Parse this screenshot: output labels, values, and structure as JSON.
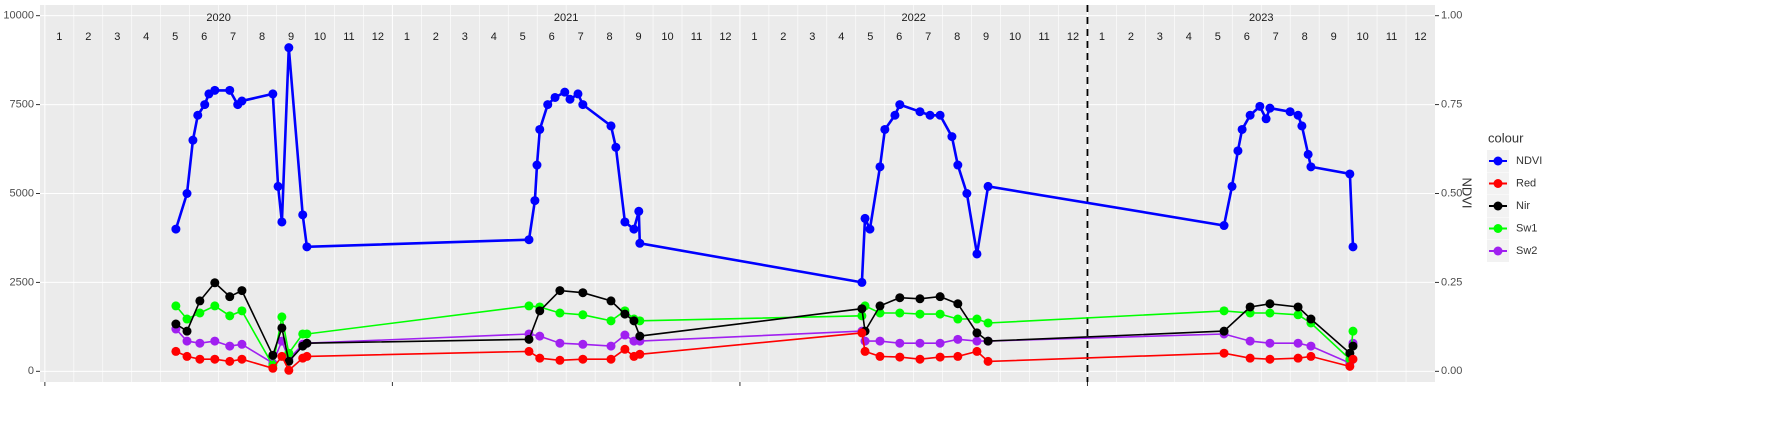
{
  "chart_data": {
    "type": "line",
    "years": [
      "2020",
      "2021",
      "2022",
      "2023"
    ],
    "months": [
      "1",
      "2",
      "3",
      "4",
      "5",
      "6",
      "7",
      "8",
      "9",
      "10",
      "11",
      "12"
    ],
    "y2label": "NDVI",
    "legend_title": "colour",
    "legend": "right",
    "grid": true,
    "xlim": [
      2019.986,
      2024.0
    ],
    "ylim": [
      -300,
      10300
    ],
    "yticks": [
      0,
      2500,
      5000,
      7500,
      10000
    ],
    "y2lim": [
      -0.03,
      1.03
    ],
    "y2ticks": [
      {
        "value": 0,
        "label": "0.00"
      },
      {
        "value": 0.25,
        "label": "0.25"
      },
      {
        "value": 0.5,
        "label": "0.50"
      },
      {
        "value": 0.75,
        "label": "0.75"
      },
      {
        "value": 1,
        "label": "1.00"
      }
    ],
    "vline": 2023,
    "series": [
      {
        "name": "NDVI",
        "color": "#0000ff",
        "axis": "y2",
        "x": [
          2020.377,
          2020.409,
          2020.426,
          2020.44,
          2020.46,
          2020.472,
          2020.489,
          2020.532,
          2020.555,
          2020.567,
          2020.656,
          2020.671,
          2020.682,
          2020.702,
          2020.742,
          2020.754,
          2021.393,
          2021.41,
          2021.416,
          2021.424,
          2021.447,
          2021.468,
          2021.496,
          2021.511,
          2021.534,
          2021.548,
          2021.629,
          2021.643,
          2021.669,
          2021.695,
          2021.709,
          2021.712,
          2022.351,
          2022.36,
          2022.374,
          2022.403,
          2022.417,
          2022.446,
          2022.46,
          2022.518,
          2022.547,
          2022.576,
          2022.61,
          2022.627,
          2022.653,
          2022.682,
          2022.714,
          2023.393,
          2023.416,
          2023.433,
          2023.445,
          2023.468,
          2023.496,
          2023.514,
          2023.525,
          2023.583,
          2023.606,
          2023.617,
          2023.635,
          2023.643,
          2023.755,
          2023.764
        ],
        "values": [
          0.4,
          0.5,
          0.65,
          0.72,
          0.75,
          0.78,
          0.79,
          0.79,
          0.75,
          0.76,
          0.78,
          0.52,
          0.42,
          0.91,
          0.44,
          0.35,
          0.37,
          0.48,
          0.58,
          0.68,
          0.75,
          0.77,
          0.785,
          0.765,
          0.78,
          0.75,
          0.69,
          0.63,
          0.42,
          0.4,
          0.45,
          0.36,
          0.25,
          0.43,
          0.4,
          0.575,
          0.68,
          0.72,
          0.75,
          0.73,
          0.72,
          0.72,
          0.66,
          0.58,
          0.5,
          0.33,
          0.52,
          0.41,
          0.52,
          0.62,
          0.68,
          0.72,
          0.745,
          0.71,
          0.74,
          0.73,
          0.72,
          0.69,
          0.61,
          0.575,
          0.555,
          0.35
        ]
      },
      {
        "name": "Red",
        "color": "#ff0000",
        "x": [
          2020.377,
          2020.409,
          2020.446,
          2020.489,
          2020.532,
          2020.567,
          2020.656,
          2020.682,
          2020.702,
          2020.742,
          2020.754,
          2021.393,
          2021.424,
          2021.482,
          2021.548,
          2021.629,
          2021.669,
          2021.695,
          2021.712,
          2022.351,
          2022.36,
          2022.403,
          2022.46,
          2022.518,
          2022.576,
          2022.627,
          2022.682,
          2022.714,
          2023.393,
          2023.468,
          2023.525,
          2023.606,
          2023.643,
          2023.755,
          2023.764
        ],
        "values": [
          560,
          420,
          340,
          340,
          280,
          340,
          85,
          420,
          30,
          370,
          420,
          560,
          370,
          310,
          340,
          340,
          620,
          420,
          480,
          1080,
          560,
          420,
          400,
          340,
          400,
          420,
          560,
          280,
          510,
          370,
          340,
          370,
          420,
          140,
          340
        ]
      },
      {
        "name": "Nir",
        "color": "#000000",
        "x": [
          2020.377,
          2020.409,
          2020.446,
          2020.489,
          2020.532,
          2020.567,
          2020.656,
          2020.682,
          2020.702,
          2020.742,
          2020.754,
          2021.393,
          2021.424,
          2021.482,
          2021.548,
          2021.629,
          2021.669,
          2021.695,
          2021.712,
          2022.351,
          2022.36,
          2022.403,
          2022.46,
          2022.518,
          2022.576,
          2022.627,
          2022.682,
          2022.714,
          2023.393,
          2023.468,
          2023.525,
          2023.606,
          2023.643,
          2023.755,
          2023.764
        ],
        "values": [
          1330,
          1130,
          1980,
          2490,
          2100,
          2270,
          450,
          1220,
          280,
          710,
          790,
          900,
          1700,
          2270,
          2210,
          1980,
          1610,
          1420,
          990,
          1760,
          1130,
          1840,
          2070,
          2040,
          2100,
          1900,
          1080,
          850,
          1130,
          1810,
          1900,
          1810,
          1470,
          510,
          710
        ]
      },
      {
        "name": "Sw1",
        "color": "#00ff00",
        "x": [
          2020.377,
          2020.409,
          2020.446,
          2020.489,
          2020.532,
          2020.567,
          2020.656,
          2020.682,
          2020.702,
          2020.742,
          2020.754,
          2021.393,
          2021.424,
          2021.482,
          2021.548,
          2021.629,
          2021.669,
          2021.695,
          2021.712,
          2022.351,
          2022.36,
          2022.403,
          2022.46,
          2022.518,
          2022.576,
          2022.627,
          2022.682,
          2022.714,
          2023.393,
          2023.468,
          2023.525,
          2023.606,
          2023.643,
          2023.755,
          2023.764
        ],
        "values": [
          1840,
          1470,
          1640,
          1840,
          1560,
          1700,
          170,
          1530,
          510,
          1050,
          1050,
          1840,
          1810,
          1640,
          1590,
          1420,
          1700,
          1470,
          1420,
          1560,
          1840,
          1640,
          1640,
          1610,
          1610,
          1470,
          1470,
          1360,
          1700,
          1640,
          1640,
          1590,
          1360,
          340,
          1130
        ]
      },
      {
        "name": "Sw2",
        "color": "#a020f0",
        "x": [
          2020.377,
          2020.409,
          2020.446,
          2020.489,
          2020.532,
          2020.567,
          2020.656,
          2020.682,
          2020.702,
          2020.742,
          2020.754,
          2021.393,
          2021.424,
          2021.482,
          2021.548,
          2021.629,
          2021.669,
          2021.695,
          2021.712,
          2022.351,
          2022.36,
          2022.403,
          2022.46,
          2022.518,
          2022.576,
          2022.627,
          2022.682,
          2022.714,
          2023.393,
          2023.468,
          2023.525,
          2023.606,
          2023.643,
          2023.755,
          2023.764
        ],
        "values": [
          1190,
          850,
          790,
          850,
          710,
          760,
          230,
          850,
          340,
          760,
          790,
          1050,
          990,
          790,
          760,
          710,
          1020,
          850,
          850,
          1130,
          850,
          850,
          790,
          790,
          790,
          900,
          850,
          850,
          1050,
          850,
          790,
          790,
          710,
          230,
          790
        ]
      }
    ]
  }
}
